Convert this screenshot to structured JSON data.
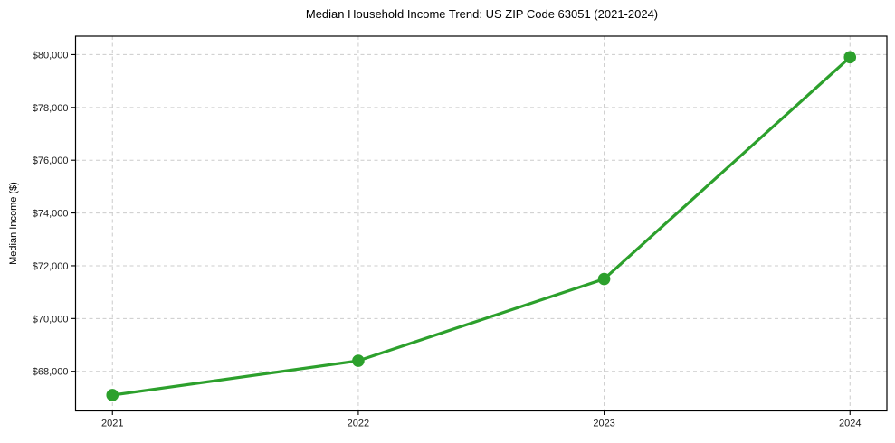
{
  "figure": {
    "background": "#ffffff"
  },
  "chart_data": {
    "type": "line",
    "title": "Median Household Income Trend: US ZIP Code 63051 (2021-2024)",
    "xlabel": "",
    "ylabel": "Median Income ($)",
    "x": [
      2021,
      2022,
      2023,
      2024
    ],
    "xtick_labels": [
      "2021",
      "2022",
      "2023",
      "2024"
    ],
    "values": [
      67100,
      68400,
      71500,
      79900
    ],
    "yticks": [
      68000,
      70000,
      72000,
      74000,
      76000,
      78000,
      80000
    ],
    "ytick_labels": [
      "$68,000",
      "$70,000",
      "$72,000",
      "$74,000",
      "$76,000",
      "$78,000",
      "$80,000"
    ],
    "xlim": [
      2020.85,
      2024.15
    ],
    "ylim": [
      66500,
      80700
    ],
    "grid": true,
    "legend_position": "none",
    "line_color": "#2ca02c",
    "marker": "circle",
    "grid_color": "#cccccc",
    "axis_color": "#000000",
    "text_color": "#1a1a1a"
  }
}
